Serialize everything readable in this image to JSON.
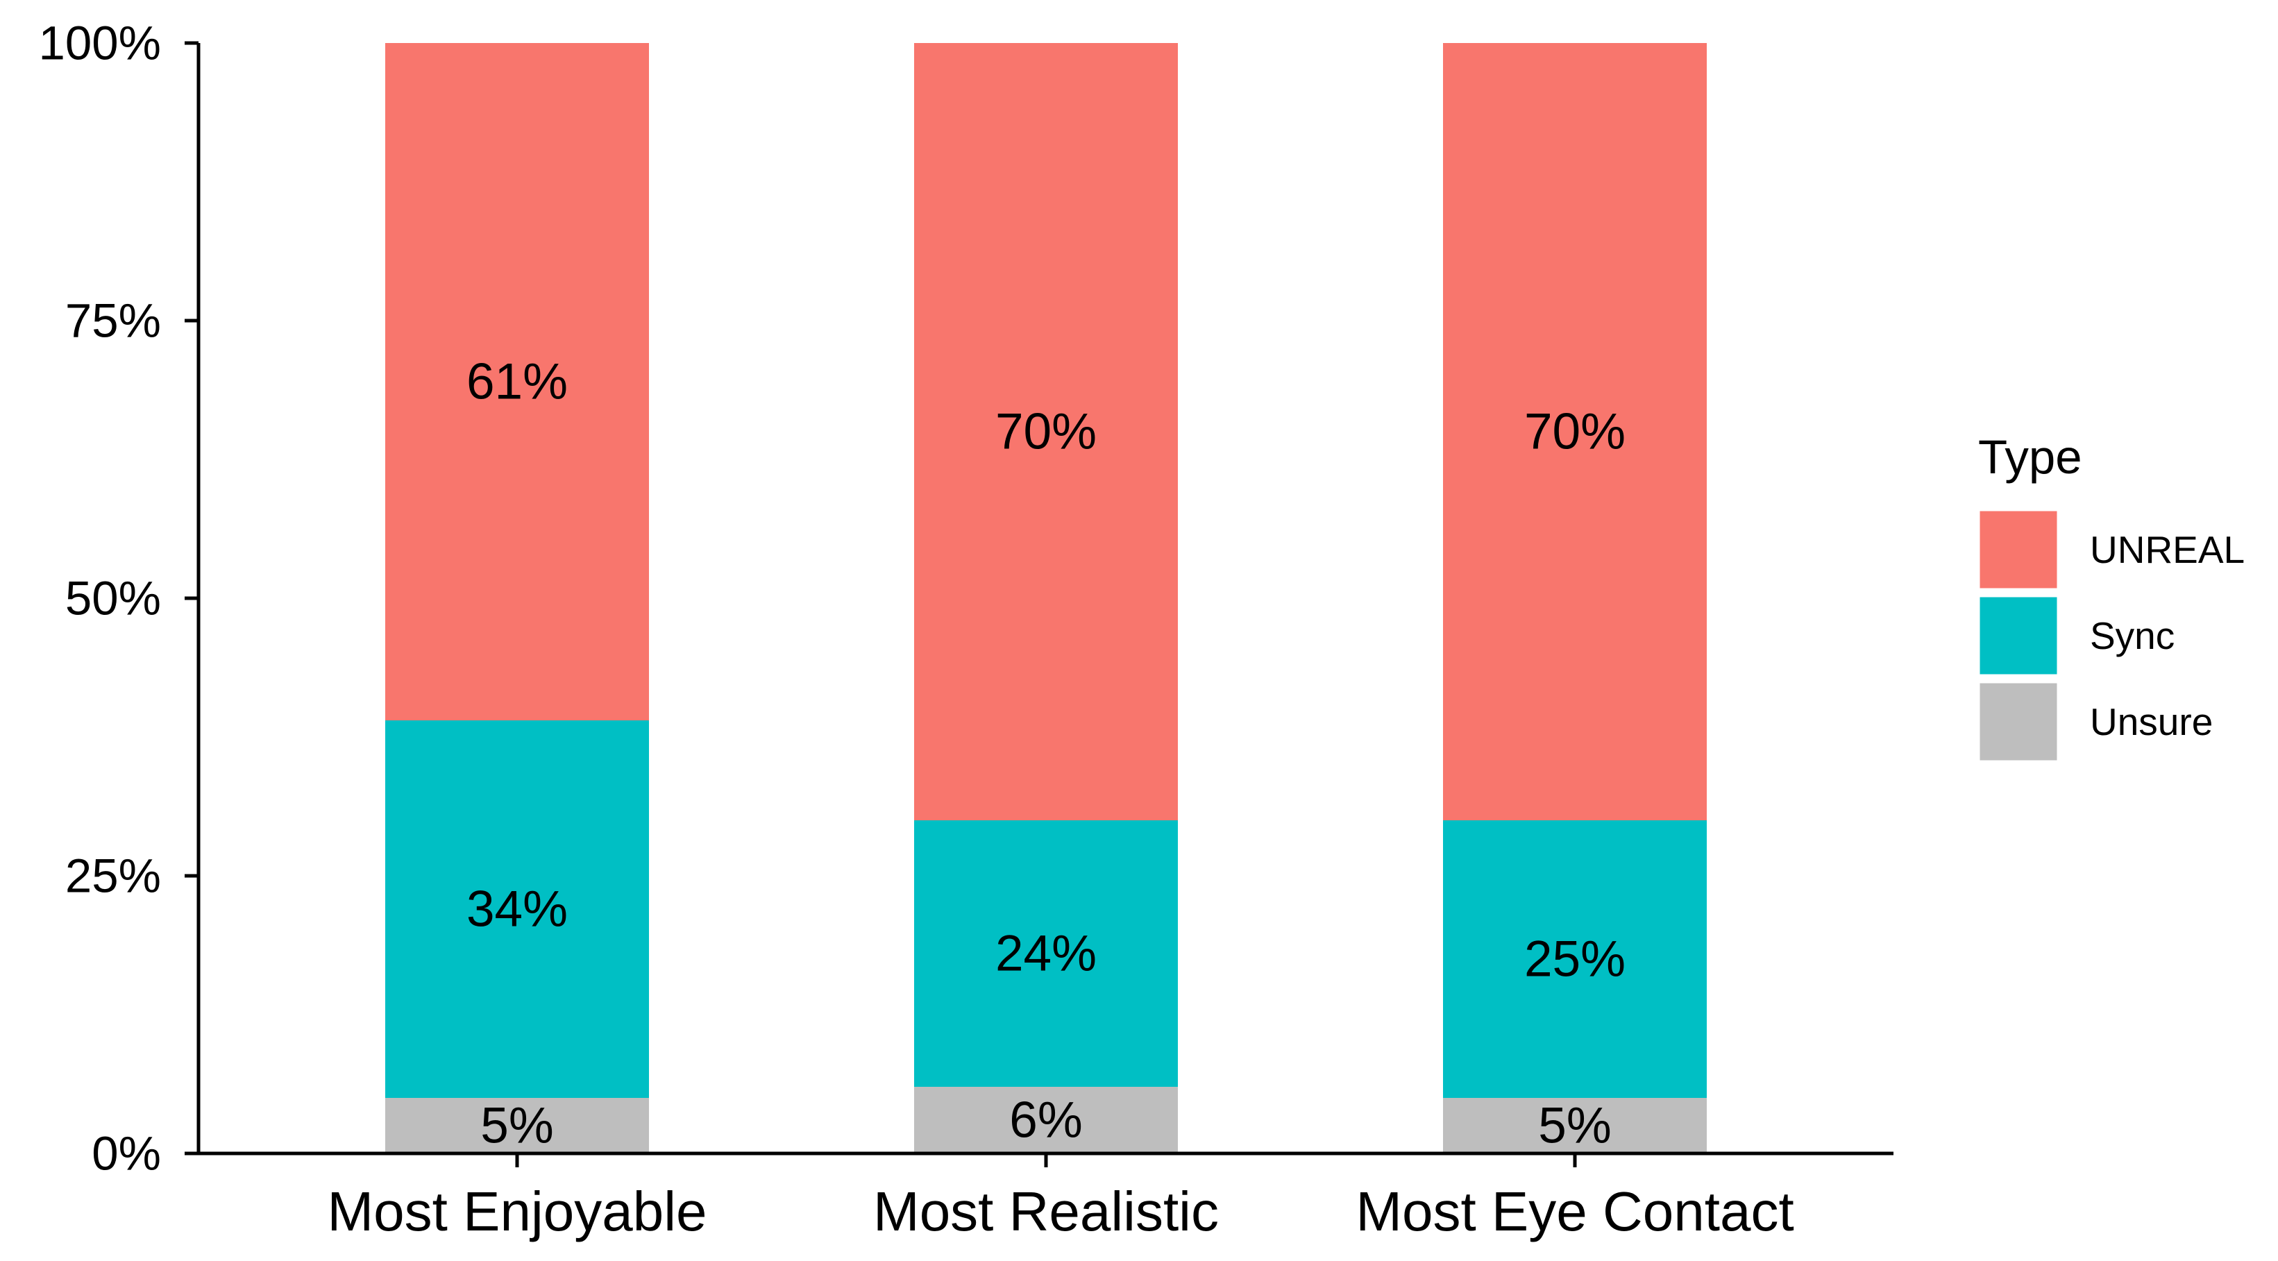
{
  "chart_data": {
    "type": "bar",
    "stacked": true,
    "categories": [
      "Most Enjoyable",
      "Most Realistic",
      "Most Eye Contact"
    ],
    "series": [
      {
        "name": "Unsure",
        "color": "#BEBEBE",
        "values": [
          5,
          6,
          5
        ],
        "labels": [
          "5%",
          "6%",
          "5%"
        ]
      },
      {
        "name": "Sync",
        "color": "#00BFC4",
        "values": [
          34,
          24,
          25
        ],
        "labels": [
          "34%",
          "24%",
          "25%"
        ]
      },
      {
        "name": "UNREAL",
        "color": "#F8766D",
        "values": [
          61,
          70,
          70
        ],
        "labels": [
          "61%",
          "70%",
          "70%"
        ]
      }
    ],
    "ylim": [
      0,
      100
    ],
    "yticks": [
      0,
      25,
      50,
      75,
      100
    ],
    "ytick_labels": [
      "0%",
      "25%",
      "50%",
      "75%",
      "100%"
    ],
    "xlabel": "",
    "ylabel": "",
    "title": "",
    "legend": {
      "title": "Type",
      "position": "right",
      "entries": [
        "UNREAL",
        "Sync",
        "Unsure"
      ]
    }
  }
}
